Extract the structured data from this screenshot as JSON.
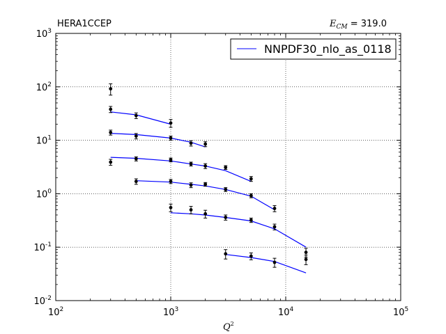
{
  "chart_data": {
    "type": "scatter",
    "title_left": "HERA1CCEP",
    "title_right": {
      "symbol": "E",
      "subscript": "CM",
      "value_text": " = 319.0"
    },
    "xlabel": {
      "symbol": "Q",
      "superscript": "2"
    },
    "ylabel": "",
    "x_scale": "log",
    "y_scale": "log",
    "xlim": [
      100,
      100000
    ],
    "ylim": [
      0.01,
      1000
    ],
    "grid": true,
    "legend_position": "top-right",
    "x_ticks": [
      {
        "value": 100,
        "base": "10",
        "exp": "2"
      },
      {
        "value": 1000,
        "base": "10",
        "exp": "3"
      },
      {
        "value": 10000,
        "base": "10",
        "exp": "4"
      },
      {
        "value": 100000,
        "base": "10",
        "exp": "5"
      }
    ],
    "y_ticks": [
      {
        "value": 0.01,
        "base": "10",
        "exp": "-2"
      },
      {
        "value": 0.1,
        "base": "10",
        "exp": "-1"
      },
      {
        "value": 1,
        "base": "10",
        "exp": "0"
      },
      {
        "value": 10,
        "base": "10",
        "exp": "1"
      },
      {
        "value": 100,
        "base": "10",
        "exp": "2"
      },
      {
        "value": 1000,
        "base": "10",
        "exp": "3"
      }
    ],
    "data_points": [
      {
        "x": 300,
        "y": 92,
        "err": 22
      },
      {
        "x": 300,
        "y": 38,
        "err": 5
      },
      {
        "x": 500,
        "y": 29,
        "err": 3.5
      },
      {
        "x": 1000,
        "y": 21,
        "err": 3.5
      },
      {
        "x": 300,
        "y": 14,
        "err": 1.5
      },
      {
        "x": 500,
        "y": 12,
        "err": 1.4
      },
      {
        "x": 1000,
        "y": 11,
        "err": 1.0
      },
      {
        "x": 1500,
        "y": 8.8,
        "err": 1.0
      },
      {
        "x": 2000,
        "y": 8.5,
        "err": 0.9
      },
      {
        "x": 300,
        "y": 3.9,
        "err": 0.5
      },
      {
        "x": 500,
        "y": 4.5,
        "err": 0.4
      },
      {
        "x": 1000,
        "y": 4.3,
        "err": 0.35
      },
      {
        "x": 1500,
        "y": 3.6,
        "err": 0.3
      },
      {
        "x": 2000,
        "y": 3.3,
        "err": 0.35
      },
      {
        "x": 3000,
        "y": 3.1,
        "err": 0.25
      },
      {
        "x": 5000,
        "y": 1.9,
        "err": 0.2
      },
      {
        "x": 500,
        "y": 1.7,
        "err": 0.2
      },
      {
        "x": 1000,
        "y": 1.7,
        "err": 0.15
      },
      {
        "x": 1500,
        "y": 1.45,
        "err": 0.15
      },
      {
        "x": 2000,
        "y": 1.5,
        "err": 0.12
      },
      {
        "x": 3000,
        "y": 1.2,
        "err": 0.1
      },
      {
        "x": 5000,
        "y": 0.92,
        "err": 0.08
      },
      {
        "x": 1000,
        "y": 0.55,
        "err": 0.09
      },
      {
        "x": 1500,
        "y": 0.5,
        "err": 0.08
      },
      {
        "x": 2000,
        "y": 0.42,
        "err": 0.07
      },
      {
        "x": 3000,
        "y": 0.36,
        "err": 0.04
      },
      {
        "x": 5000,
        "y": 0.32,
        "err": 0.03
      },
      {
        "x": 8000,
        "y": 0.53,
        "err": 0.07
      },
      {
        "x": 8000,
        "y": 0.24,
        "err": 0.03
      },
      {
        "x": 15000,
        "y": 0.08,
        "err": 0.015
      },
      {
        "x": 3000,
        "y": 0.075,
        "err": 0.015
      },
      {
        "x": 5000,
        "y": 0.068,
        "err": 0.01
      },
      {
        "x": 8000,
        "y": 0.052,
        "err": 0.01
      },
      {
        "x": 15000,
        "y": 0.059,
        "err": 0.012
      }
    ],
    "series": [
      {
        "name": "NNPDF30_nlo_as_0118",
        "color": "#0000ff",
        "curves": [
          [
            [
              300,
              34
            ],
            [
              500,
              30
            ],
            [
              1000,
              20
            ]
          ],
          [
            [
              300,
              13.5
            ],
            [
              500,
              12.8
            ],
            [
              1000,
              11
            ],
            [
              1500,
              9.2
            ],
            [
              2000,
              7.5
            ]
          ],
          [
            [
              300,
              4.8
            ],
            [
              500,
              4.6
            ],
            [
              1000,
              4.1
            ],
            [
              1500,
              3.6
            ],
            [
              2000,
              3.3
            ],
            [
              3000,
              2.7
            ],
            [
              5000,
              1.7
            ]
          ],
          [
            [
              500,
              1.75
            ],
            [
              1000,
              1.65
            ],
            [
              1500,
              1.5
            ],
            [
              2000,
              1.4
            ],
            [
              3000,
              1.2
            ],
            [
              5000,
              0.9
            ],
            [
              8000,
              0.5
            ]
          ],
          [
            [
              1000,
              0.44
            ],
            [
              1500,
              0.42
            ],
            [
              2000,
              0.4
            ],
            [
              3000,
              0.36
            ],
            [
              5000,
              0.31
            ],
            [
              8000,
              0.22
            ],
            [
              15000,
              0.1
            ]
          ],
          [
            [
              3000,
              0.073
            ],
            [
              5000,
              0.064
            ],
            [
              8000,
              0.054
            ],
            [
              15000,
              0.033
            ]
          ]
        ]
      }
    ]
  }
}
